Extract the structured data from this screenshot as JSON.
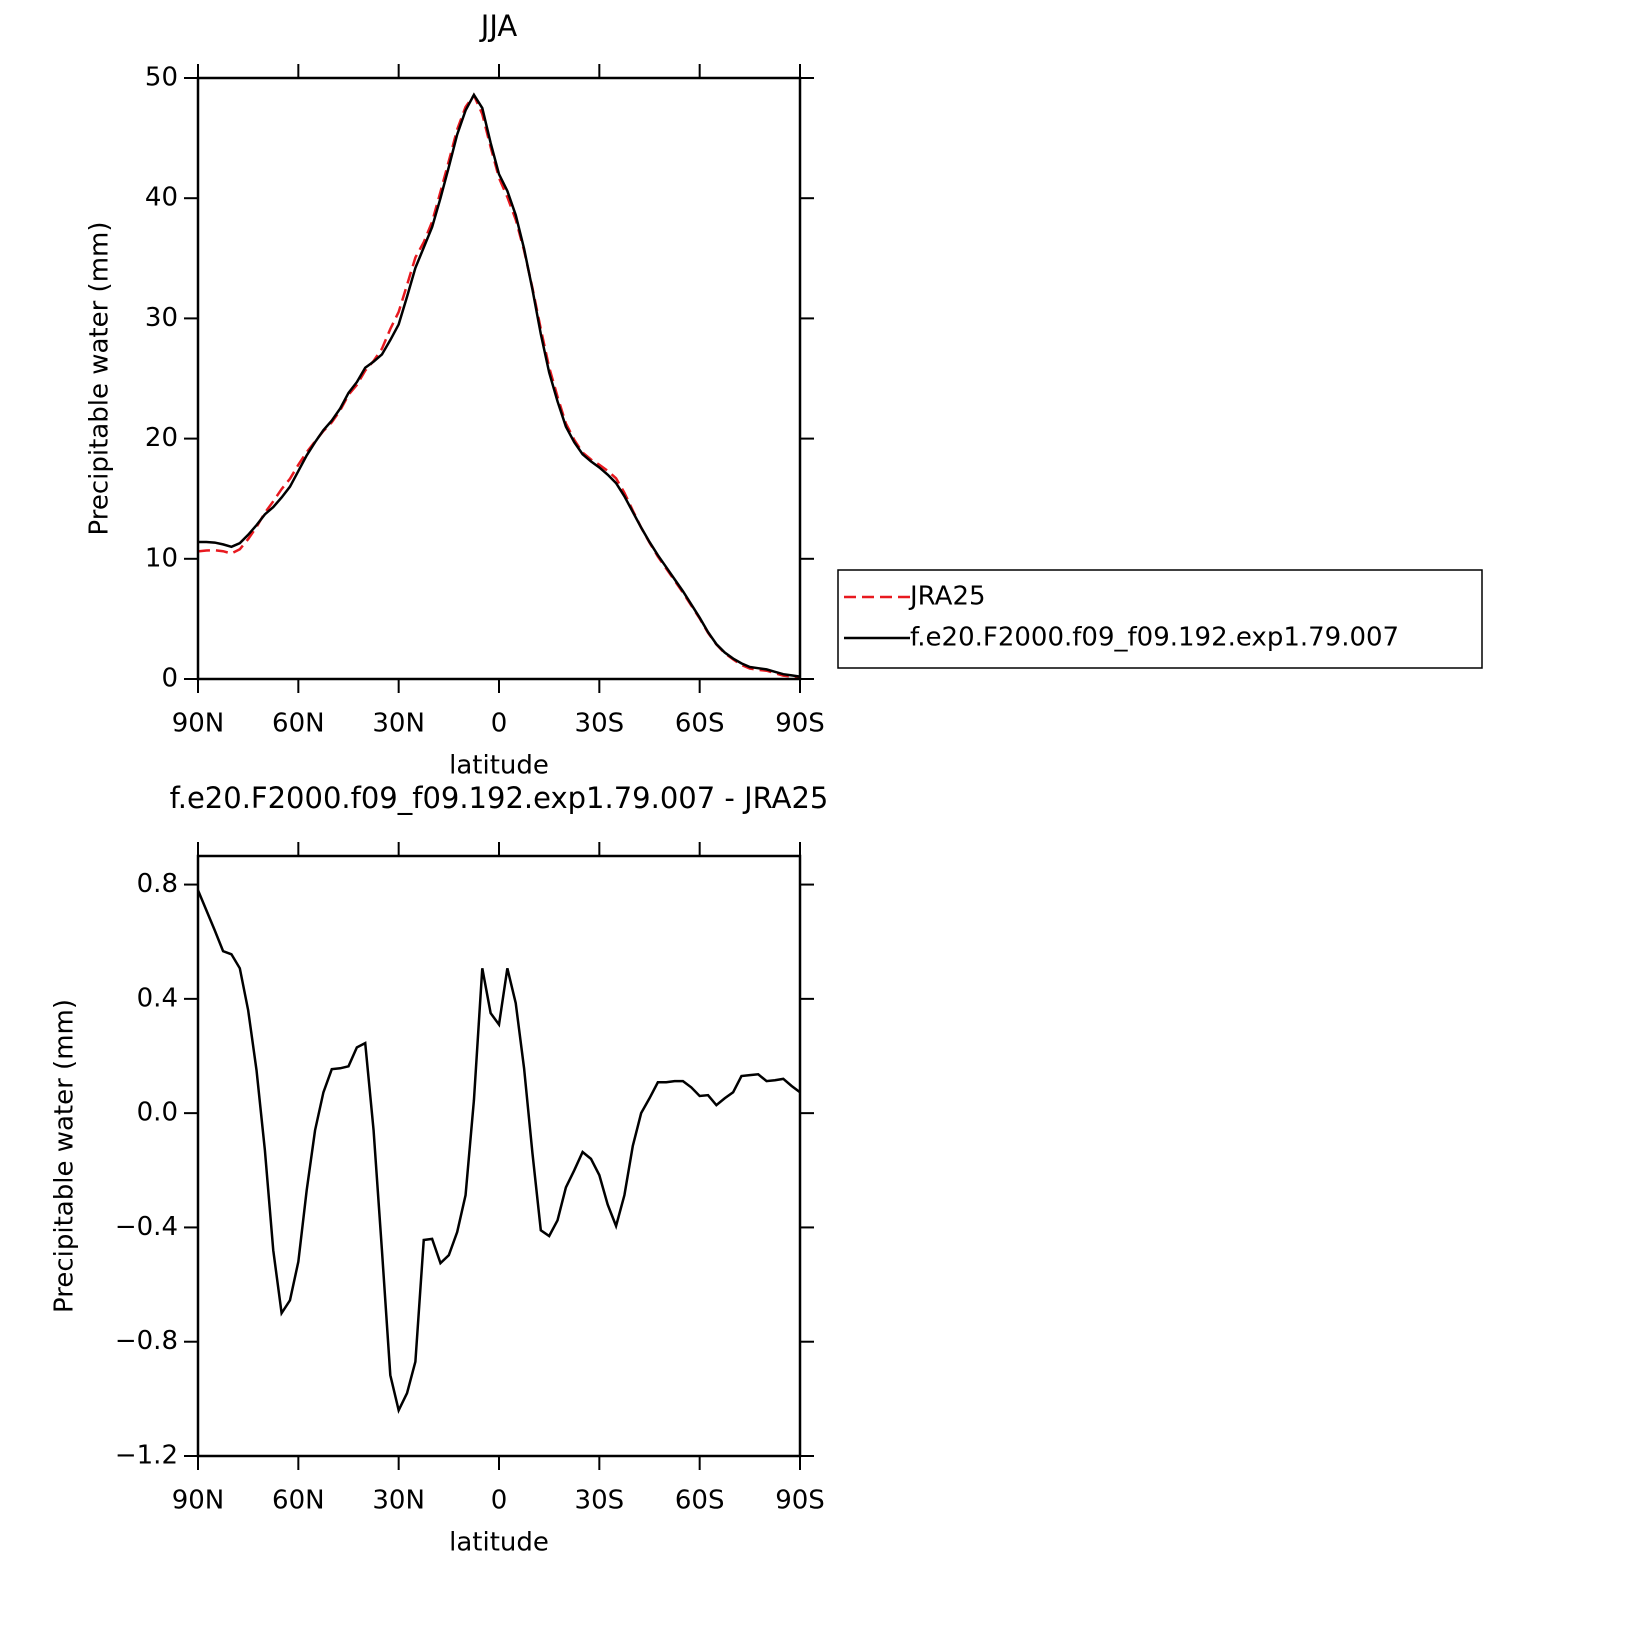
{
  "chart_data": [
    {
      "type": "line",
      "title": "JJA",
      "xlabel": "latitude",
      "ylabel": "Precipitable water (mm)",
      "x": [
        90,
        87.5,
        85,
        82.5,
        80,
        77.5,
        75,
        72.5,
        70,
        67.5,
        65,
        62.5,
        60,
        57.5,
        55,
        52.5,
        50,
        47.5,
        45,
        42.5,
        40,
        37.5,
        35,
        32.5,
        30,
        27.5,
        25,
        22.5,
        20,
        17.5,
        15,
        12.5,
        10,
        7.5,
        5,
        2.5,
        0,
        -2.5,
        -5,
        -7.5,
        -10,
        -12.5,
        -15,
        -17.5,
        -20,
        -22.5,
        -25,
        -27.5,
        -30,
        -32.5,
        -35,
        -37.5,
        -40,
        -42.5,
        -45,
        -47.5,
        -50,
        -52.5,
        -55,
        -57.5,
        -60,
        -62.5,
        -65,
        -67.5,
        -70,
        -72.5,
        -75,
        -77.5,
        -80,
        -82.5,
        -85,
        -87.5,
        -90
      ],
      "series": [
        {
          "name": "JRA25",
          "color": "#e8191f",
          "linestyle": "dashed",
          "values": [
            10.62,
            10.69,
            10.71,
            10.63,
            10.44,
            10.79,
            11.64,
            12.65,
            13.83,
            14.78,
            15.8,
            16.66,
            17.82,
            18.87,
            19.76,
            20.63,
            21.35,
            22.34,
            23.64,
            24.47,
            25.66,
            26.46,
            27.48,
            29.12,
            30.54,
            32.78,
            35.07,
            36.34,
            38.04,
            40.53,
            43.1,
            45.72,
            47.59,
            48.56,
            46.99,
            44.25,
            41.69,
            40.09,
            38.22,
            35.64,
            32.54,
            29.11,
            25.93,
            23.48,
            21.26,
            19.9,
            18.84,
            18.26,
            17.82,
            17.32,
            16.7,
            15.49,
            14.02,
            12.6,
            11.35,
            10.19,
            9.19,
            8.19,
            7.19,
            6.11,
            5.04,
            3.84,
            2.87,
            2.15,
            1.63,
            1.17,
            0.87,
            0.76,
            0.69,
            0.49,
            0.28,
            0.21,
            0.13
          ]
        },
        {
          "name": "f.e20.F2000.f09_f09.192.exp1.79.007",
          "color": "#000000",
          "linestyle": "solid",
          "values": [
            11.4,
            11.4,
            11.35,
            11.2,
            11.0,
            11.3,
            12.0,
            12.8,
            13.7,
            14.3,
            15.1,
            16.0,
            17.3,
            18.6,
            19.7,
            20.7,
            21.5,
            22.5,
            23.8,
            24.7,
            25.9,
            26.4,
            27.0,
            28.2,
            29.5,
            31.8,
            34.2,
            35.9,
            37.6,
            40.0,
            42.6,
            45.3,
            47.3,
            48.6,
            47.5,
            44.6,
            42.0,
            40.6,
            38.6,
            35.8,
            32.4,
            28.7,
            25.5,
            23.1,
            21.0,
            19.7,
            18.7,
            18.1,
            17.6,
            17.0,
            16.3,
            15.2,
            13.9,
            12.6,
            11.4,
            10.3,
            9.3,
            8.3,
            7.3,
            6.2,
            5.1,
            3.9,
            2.9,
            2.2,
            1.7,
            1.3,
            1.0,
            0.9,
            0.8,
            0.6,
            0.4,
            0.3,
            0.2
          ]
        }
      ],
      "xlim": [
        90,
        -90
      ],
      "ylim": [
        0,
        50
      ],
      "xticks": [
        {
          "value": 90,
          "label": "90N"
        },
        {
          "value": 60,
          "label": "60N"
        },
        {
          "value": 30,
          "label": "30N"
        },
        0,
        {
          "value": -30,
          "label": "30S"
        },
        {
          "value": -60,
          "label": "60S"
        },
        {
          "value": -90,
          "label": "90S"
        }
      ],
      "yticks": [
        0,
        10,
        20,
        30,
        40,
        50
      ],
      "legend": "right"
    },
    {
      "type": "line",
      "title": "f.e20.F2000.f09_f09.192.exp1.79.007 - JRA25",
      "xlabel": "latitude",
      "ylabel": "Precipitable water (mm)",
      "x": [
        90,
        87.5,
        85,
        82.5,
        80,
        77.5,
        75,
        72.5,
        70,
        67.5,
        65,
        62.5,
        60,
        57.5,
        55,
        52.5,
        50,
        47.5,
        45,
        42.5,
        40,
        37.5,
        35,
        32.5,
        30,
        27.5,
        25,
        22.5,
        20,
        17.5,
        15,
        12.5,
        10,
        7.5,
        5,
        2.5,
        0,
        -2.5,
        -5,
        -7.5,
        -10,
        -12.5,
        -15,
        -17.5,
        -20,
        -22.5,
        -25,
        -27.5,
        -30,
        -32.5,
        -35,
        -37.5,
        -40,
        -42.5,
        -45,
        -47.5,
        -50,
        -52.5,
        -55,
        -57.5,
        -60,
        -62.5,
        -65,
        -67.5,
        -70,
        -72.5,
        -75,
        -77.5,
        -80,
        -82.5,
        -85,
        -87.5,
        -90
      ],
      "series": [
        {
          "color": "#000000",
          "linestyle": "solid",
          "values": [
            0.78,
            0.71,
            0.64,
            0.567,
            0.556,
            0.507,
            0.36,
            0.15,
            -0.13,
            -0.48,
            -0.7,
            -0.655,
            -0.52,
            -0.27,
            -0.06,
            0.073,
            0.154,
            0.157,
            0.164,
            0.23,
            0.245,
            -0.06,
            -0.48,
            -0.917,
            -1.04,
            -0.98,
            -0.87,
            -0.444,
            -0.44,
            -0.525,
            -0.497,
            -0.416,
            -0.287,
            0.045,
            0.507,
            0.35,
            0.31,
            0.507,
            0.385,
            0.157,
            -0.14,
            -0.41,
            -0.43,
            -0.375,
            -0.26,
            -0.2,
            -0.136,
            -0.16,
            -0.217,
            -0.32,
            -0.395,
            -0.287,
            -0.115,
            0.0,
            0.052,
            0.108,
            0.108,
            0.112,
            0.112,
            0.09,
            0.06,
            0.063,
            0.028,
            0.052,
            0.073,
            0.13,
            0.133,
            0.136,
            0.112,
            0.115,
            0.12,
            0.095,
            0.073
          ]
        }
      ],
      "xlim": [
        90,
        -90
      ],
      "ylim": [
        -1.2,
        0.9
      ],
      "xticks": [
        {
          "value": 90,
          "label": "90N"
        },
        {
          "value": 60,
          "label": "60N"
        },
        {
          "value": 30,
          "label": "30N"
        },
        0,
        {
          "value": -30,
          "label": "30S"
        },
        {
          "value": -60,
          "label": "60S"
        },
        {
          "value": -90,
          "label": "90S"
        }
      ],
      "yticks": [
        {
          "value": -1.2,
          "label": "−1.2"
        },
        {
          "value": -0.8,
          "label": "−0.8"
        },
        {
          "value": -0.4,
          "label": "−0.4"
        },
        {
          "value": 0,
          "label": "0.0"
        },
        0.4,
        0.8
      ]
    }
  ]
}
